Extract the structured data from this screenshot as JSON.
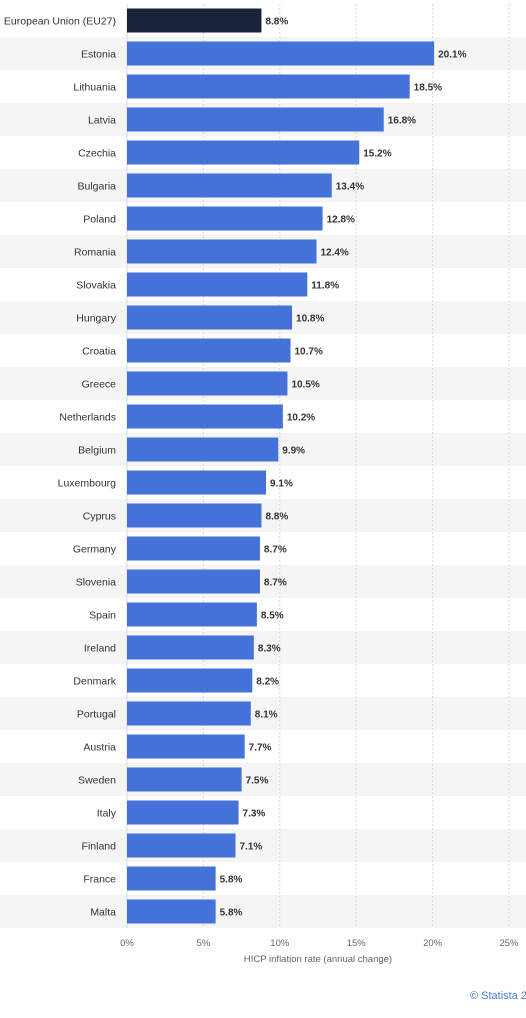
{
  "chart_data": {
    "type": "bar",
    "orientation": "horizontal",
    "categories": [
      "European Union (EU27)",
      "Estonia",
      "Lithuania",
      "Latvia",
      "Czechia",
      "Bulgaria",
      "Poland",
      "Romania",
      "Slovakia",
      "Hungary",
      "Croatia",
      "Greece",
      "Netherlands",
      "Belgium",
      "Luxembourg",
      "Cyprus",
      "Germany",
      "Slovenia",
      "Spain",
      "Ireland",
      "Denmark",
      "Portugal",
      "Austria",
      "Sweden",
      "Italy",
      "Finland",
      "France",
      "Malta"
    ],
    "values": [
      8.8,
      20.1,
      18.5,
      16.8,
      15.2,
      13.4,
      12.8,
      12.4,
      11.8,
      10.8,
      10.7,
      10.5,
      10.2,
      9.9,
      9.1,
      8.8,
      8.7,
      8.7,
      8.5,
      8.3,
      8.2,
      8.1,
      7.7,
      7.5,
      7.3,
      7.1,
      5.8,
      5.8
    ],
    "value_labels": [
      "8.8%",
      "20.1%",
      "18.5%",
      "16.8%",
      "15.2%",
      "13.4%",
      "12.8%",
      "12.4%",
      "11.8%",
      "10.8%",
      "10.7%",
      "10.5%",
      "10.2%",
      "9.9%",
      "9.1%",
      "8.8%",
      "8.7%",
      "8.7%",
      "8.5%",
      "8.3%",
      "8.2%",
      "8.1%",
      "7.7%",
      "7.5%",
      "7.3%",
      "7.1%",
      "5.8%",
      "5.8%"
    ],
    "highlight_index": 0,
    "xlabel": "HICP inflation rate (annual change)",
    "xlim": [
      0,
      25
    ],
    "xticks": [
      0,
      5,
      10,
      15,
      20,
      25
    ],
    "xtick_labels": [
      "0%",
      "5%",
      "10%",
      "15%",
      "20%",
      "25%"
    ],
    "grid": true,
    "colors": {
      "bar": "#4472d8",
      "highlight": "#17243a",
      "band": "#f5f5f5",
      "grid": "#d9d9d9"
    }
  },
  "footer": {
    "credit": "© Statista 2"
  }
}
